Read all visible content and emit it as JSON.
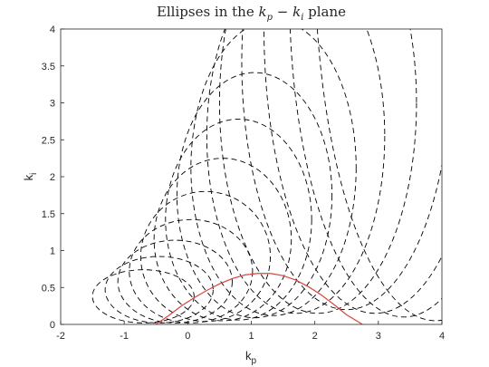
{
  "chart_data": {
    "type": "line",
    "title": "Ellipses in the kp − ki plane",
    "title_parts": {
      "prefix": "Ellipses in the ",
      "k1": "k",
      "s1": "p",
      "op": " − ",
      "k2": "k",
      "s2": "i",
      "suffix": " plane"
    },
    "xlabel": "k",
    "xlabel_sub": "p",
    "ylabel": "k",
    "ylabel_sub": "i",
    "xlim": [
      -2,
      4
    ],
    "ylim": [
      0,
      4
    ],
    "xticks": [
      "-2",
      "-1",
      "0",
      "1",
      "2",
      "3",
      "4"
    ],
    "yticks": [
      "0",
      "0.5",
      "1",
      "1.5",
      "2",
      "2.5",
      "3",
      "3.5",
      "4"
    ],
    "grid": false,
    "box": true,
    "ellipse_style": {
      "color": "#000000",
      "dash": "dashed"
    },
    "boundary_color": "#d9453f",
    "ellipses": [
      {
        "cx": -0.7,
        "cy": 0.38,
        "rx": 0.8,
        "ry": 0.36
      },
      {
        "cx": -0.45,
        "cy": 0.47,
        "rx": 0.85,
        "ry": 0.45
      },
      {
        "cx": -0.2,
        "cy": 0.58,
        "rx": 0.9,
        "ry": 0.56
      },
      {
        "cx": 0.05,
        "cy": 0.72,
        "rx": 0.97,
        "ry": 0.7
      },
      {
        "cx": 0.28,
        "cy": 0.92,
        "rx": 1.02,
        "ry": 0.88
      },
      {
        "cx": 0.55,
        "cy": 1.15,
        "rx": 1.08,
        "ry": 1.1
      },
      {
        "cx": 0.8,
        "cy": 1.42,
        "rx": 1.15,
        "ry": 1.36
      },
      {
        "cx": 1.05,
        "cy": 1.75,
        "rx": 1.22,
        "ry": 1.66
      },
      {
        "cx": 1.35,
        "cy": 2.12,
        "rx": 1.3,
        "ry": 2.0
      },
      {
        "cx": 1.7,
        "cy": 2.55,
        "rx": 1.4,
        "ry": 2.4
      },
      {
        "cx": 2.05,
        "cy": 3.0,
        "rx": 1.55,
        "ry": 2.85
      },
      {
        "cx": 2.5,
        "cy": 3.55,
        "rx": 1.65,
        "ry": 3.35
      },
      {
        "cx": 2.95,
        "cy": 4.0,
        "rx": 1.75,
        "ry": 3.85
      },
      {
        "cx": 3.4,
        "cy": 4.5,
        "rx": 1.8,
        "ry": 4.4
      },
      {
        "cx": 3.9,
        "cy": 5.0,
        "rx": 1.9,
        "ry": 4.95
      }
    ],
    "boundary_curve": {
      "x": [
        -0.5,
        -0.3,
        -0.1,
        0.1,
        0.3,
        0.5,
        0.7,
        0.9,
        1.1,
        1.3,
        1.5,
        1.7,
        1.9,
        2.1,
        2.3,
        2.5,
        2.75
      ],
      "y": [
        0.0,
        0.12,
        0.25,
        0.36,
        0.46,
        0.55,
        0.62,
        0.67,
        0.69,
        0.69,
        0.66,
        0.6,
        0.51,
        0.4,
        0.27,
        0.13,
        0.0
      ]
    }
  }
}
